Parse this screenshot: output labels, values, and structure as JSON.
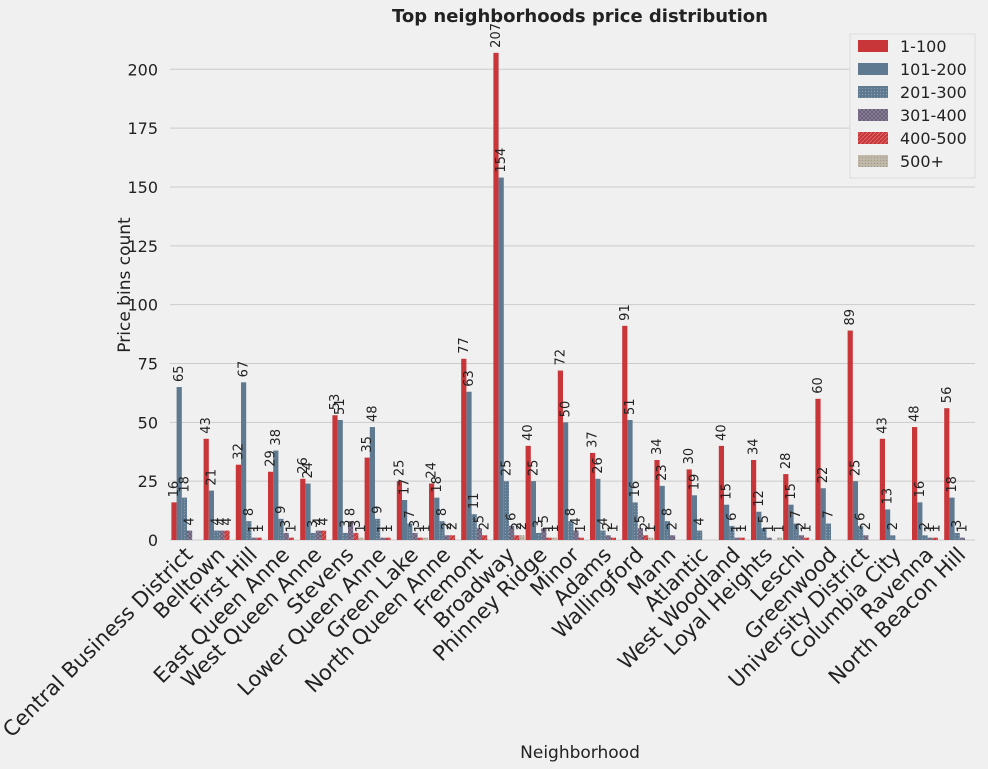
{
  "chart_data": {
    "type": "bar",
    "title": "Top neighborhoods price distribution",
    "xlabel": "Neighborhood",
    "ylabel": "Price bins count",
    "ylim": [
      0,
      215
    ],
    "yticks": [
      0,
      25,
      50,
      75,
      100,
      125,
      150,
      175,
      200
    ],
    "grid": true,
    "legend_position": "top-right",
    "categories": [
      "Central Business District",
      "Belltown",
      "First Hill",
      "East Queen Anne",
      "West Queen Anne",
      "Stevens",
      "Lower Queen Anne",
      "Green Lake",
      "North Queen Anne",
      "Fremont",
      "Broadway",
      "Phinney Ridge",
      "Minor",
      "Adams",
      "Wallingford",
      "Mann",
      "Atlantic",
      "West Woodland",
      "Loyal Heights",
      "Leschi",
      "Greenwood",
      "University District",
      "Columbia City",
      "Ravenna",
      "North Beacon Hill"
    ],
    "series": [
      {
        "name": "1-100",
        "color": "#c8363a",
        "values": [
          16,
          43,
          32,
          29,
          26,
          53,
          35,
          25,
          24,
          77,
          207,
          40,
          72,
          37,
          91,
          34,
          30,
          40,
          34,
          28,
          60,
          89,
          43,
          48,
          56
        ]
      },
      {
        "name": "101-200",
        "color": "#5f7a90",
        "values": [
          65,
          21,
          67,
          38,
          24,
          51,
          48,
          17,
          18,
          63,
          154,
          25,
          50,
          26,
          51,
          23,
          19,
          15,
          12,
          15,
          22,
          25,
          13,
          16,
          18
        ]
      },
      {
        "name": "201-300",
        "color": "#5f7a90",
        "values": [
          18,
          4,
          8,
          9,
          3,
          3,
          9,
          7,
          8,
          11,
          25,
          3,
          8,
          4,
          16,
          8,
          4,
          6,
          5,
          7,
          7,
          6,
          2,
          2,
          3
        ]
      },
      {
        "name": "301-400",
        "color": "#8a7f98",
        "values": [
          4,
          4,
          1,
          3,
          4,
          8,
          1,
          3,
          2,
          5,
          6,
          5,
          4,
          2,
          5,
          2,
          0,
          1,
          1,
          2,
          0,
          2,
          0,
          1,
          1
        ]
      },
      {
        "name": "400-500",
        "color": "#c8363a",
        "values": [
          0,
          4,
          1,
          1,
          4,
          3,
          1,
          1,
          2,
          2,
          2,
          1,
          1,
          1,
          2,
          0,
          0,
          1,
          0,
          1,
          0,
          0,
          0,
          1,
          0
        ]
      },
      {
        "name": "500+",
        "color": "#c0b8a8",
        "values": [
          0,
          0,
          0,
          0,
          0,
          1,
          0,
          1,
          0,
          0,
          2,
          1,
          0,
          0,
          1,
          0,
          0,
          0,
          1,
          0,
          0,
          0,
          0,
          0,
          0
        ]
      }
    ]
  }
}
